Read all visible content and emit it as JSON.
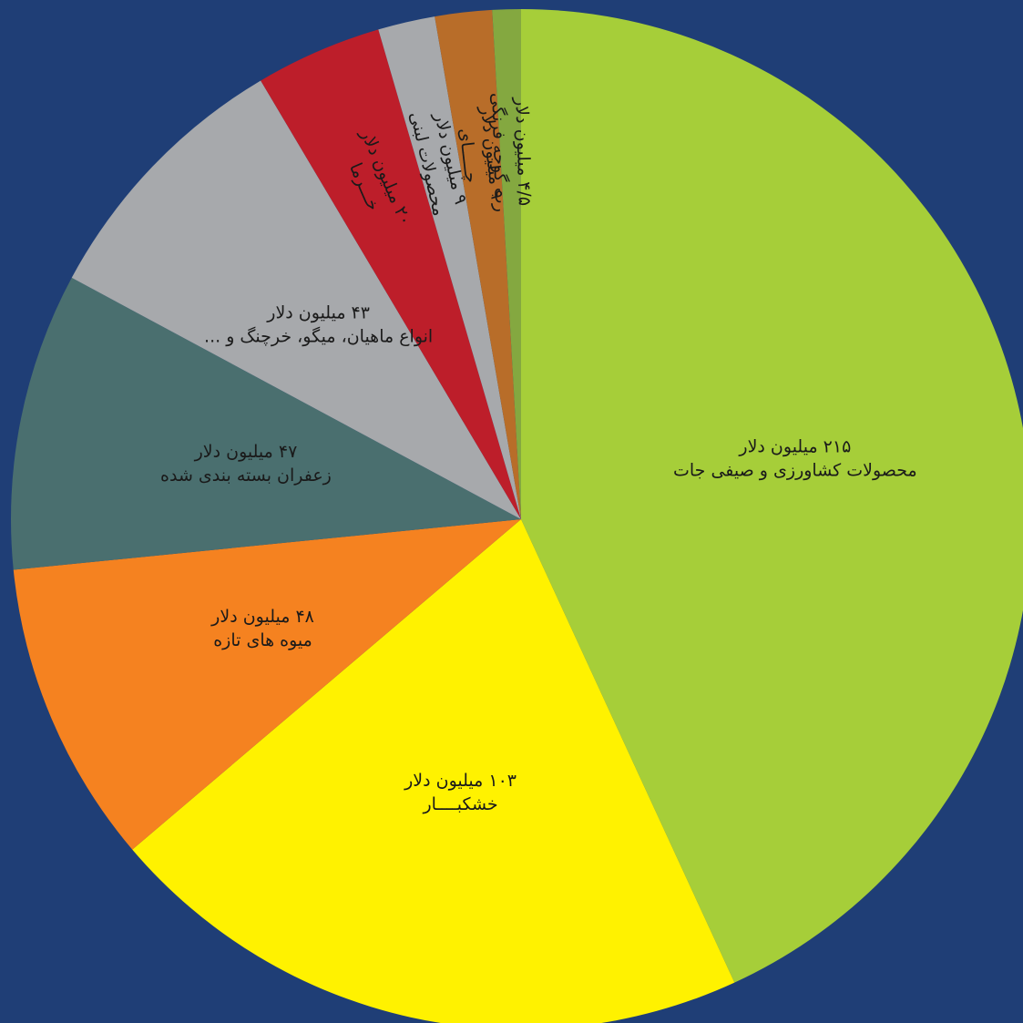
{
  "chart_data": {
    "type": "pie",
    "categories": [
      "محصولات کشاورزی و صیفی جات",
      "خشکبــــار",
      "میوه های تازه",
      "زعفران بسته بندی شده",
      "انواع ماهیان، میگو، خرچنگ و ...",
      "خـــرما",
      "محصولات لبنی",
      "چـــــای",
      "رب گوجه فرنگی"
    ],
    "values": [
      215,
      103,
      48,
      47,
      43,
      20,
      9,
      9,
      4.5
    ],
    "value_labels": [
      "۲۱۵ میلیون دلار",
      "۱۰۳ میلیون دلار",
      "۴۸ میلیون دلار",
      "۴۷ میلیون دلار",
      "۴۳ میلیون دلار",
      "۲۰ میلیون دلار",
      "۹ میلیون دلار",
      "۹ میلیون دلار",
      "۴/۵ میلیون دلار"
    ],
    "colors": [
      "#a6ce39",
      "#fff200",
      "#f58220",
      "#4a6f6f",
      "#a7a9ac",
      "#bd1e2a",
      "#a7a9ac",
      "#b86d29",
      "#84a840"
    ]
  }
}
